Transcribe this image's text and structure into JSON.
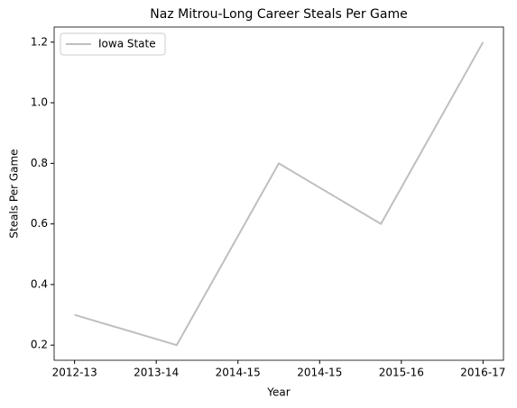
{
  "chart_data": {
    "type": "line",
    "title": "Naz Mitrou-Long Career Steals Per Game",
    "xlabel": "Year",
    "ylabel": "Steals Per Game",
    "x": [
      0,
      1,
      2,
      3,
      4
    ],
    "series": [
      {
        "name": "Iowa State",
        "color": "#bfbfbf",
        "values": [
          0.3,
          0.2,
          0.8,
          0.6,
          1.2
        ]
      }
    ],
    "xlim": [
      -0.2,
      4.2
    ],
    "xticks": [
      {
        "value": 0,
        "label": "2012-13"
      },
      {
        "value": 0.8,
        "label": "2013-14"
      },
      {
        "value": 1.6,
        "label": "2014-15"
      },
      {
        "value": 2.4,
        "label": "2014-15"
      },
      {
        "value": 3.2,
        "label": "2015-16"
      },
      {
        "value": 4.0,
        "label": "2016-17"
      }
    ],
    "ylim": [
      0.15,
      1.25
    ],
    "yticks": [
      0.2,
      0.4,
      0.6,
      0.8,
      {
        "value": 1.0,
        "label": "1.0"
      },
      1.2
    ],
    "grid": false,
    "legend": "upper left"
  }
}
